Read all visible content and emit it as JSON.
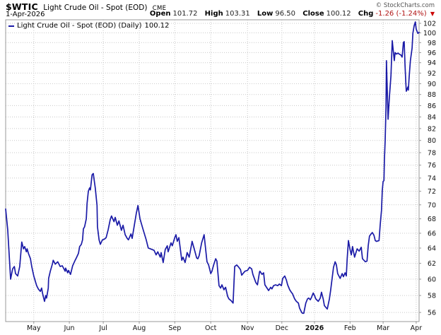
{
  "header": {
    "symbol": "$WTIC",
    "name": "Light Crude Oil - Spot (EOD)",
    "exchange": "CME",
    "date": "1-Apr-2026",
    "credit": "© StockCharts.com",
    "open_label": "Open",
    "open": "101.72",
    "high_label": "High",
    "high": "103.31",
    "low_label": "Low",
    "low": "96.50",
    "close_label": "Close",
    "close": "100.12",
    "chg_label": "Chg",
    "chg": "-1.26 (-1.24%)",
    "chg_direction": "down"
  },
  "legend": {
    "label": "Light Crude Oil - Spot (EOD) (Daily)",
    "value": "100.12"
  },
  "colors": {
    "line": "#1b1ba7",
    "grid": "#c9c9c9",
    "frame": "#999999",
    "down_red": "#cc0000"
  },
  "chart_data": {
    "type": "line",
    "title": "Light Crude Oil - Spot (EOD) (Daily)",
    "last_value": 100.12,
    "y_axis": {
      "scale": "log",
      "min": 54.95,
      "max": 102.75,
      "ticks": [
        102,
        100,
        98,
        96,
        94,
        92,
        90,
        88,
        86,
        84,
        82,
        80,
        78,
        76,
        74,
        72,
        70,
        68,
        66,
        64,
        62,
        60,
        58,
        56
      ]
    },
    "x_axis": {
      "labels": [
        {
          "t": 0.068,
          "label": "May"
        },
        {
          "t": 0.154,
          "label": "Jun"
        },
        {
          "t": 0.236,
          "label": "Jul"
        },
        {
          "t": 0.323,
          "label": "Aug"
        },
        {
          "t": 0.409,
          "label": "Sep"
        },
        {
          "t": 0.496,
          "label": "Oct"
        },
        {
          "t": 0.585,
          "label": "Nov"
        },
        {
          "t": 0.668,
          "label": "Dec"
        },
        {
          "t": 0.747,
          "label": "2026",
          "bold": true
        },
        {
          "t": 0.833,
          "label": "Feb"
        },
        {
          "t": 0.913,
          "label": "Mar"
        },
        {
          "t": 0.993,
          "label": "Apr"
        }
      ]
    },
    "points": [
      [
        0.0,
        69.4
      ],
      [
        0.005,
        66.5
      ],
      [
        0.012,
        60.0
      ],
      [
        0.017,
        61.3
      ],
      [
        0.021,
        61.6
      ],
      [
        0.024,
        60.7
      ],
      [
        0.029,
        60.4
      ],
      [
        0.034,
        61.6
      ],
      [
        0.039,
        64.8
      ],
      [
        0.043,
        63.9
      ],
      [
        0.046,
        64.2
      ],
      [
        0.05,
        63.5
      ],
      [
        0.052,
        63.9
      ],
      [
        0.055,
        63.3
      ],
      [
        0.06,
        62.6
      ],
      [
        0.063,
        61.6
      ],
      [
        0.068,
        60.4
      ],
      [
        0.072,
        59.7
      ],
      [
        0.075,
        59.2
      ],
      [
        0.079,
        58.8
      ],
      [
        0.084,
        58.5
      ],
      [
        0.087,
        58.9
      ],
      [
        0.089,
        58.3
      ],
      [
        0.092,
        57.7
      ],
      [
        0.094,
        57.3
      ],
      [
        0.097,
        58.0
      ],
      [
        0.099,
        57.7
      ],
      [
        0.103,
        58.9
      ],
      [
        0.104,
        60.1
      ],
      [
        0.108,
        61.0
      ],
      [
        0.113,
        61.9
      ],
      [
        0.115,
        62.4
      ],
      [
        0.12,
        61.9
      ],
      [
        0.126,
        62.2
      ],
      [
        0.132,
        61.6
      ],
      [
        0.137,
        61.7
      ],
      [
        0.144,
        61.0
      ],
      [
        0.145,
        61.4
      ],
      [
        0.15,
        60.8
      ],
      [
        0.152,
        61.1
      ],
      [
        0.157,
        60.6
      ],
      [
        0.162,
        61.7
      ],
      [
        0.168,
        62.4
      ],
      [
        0.171,
        62.7
      ],
      [
        0.176,
        63.3
      ],
      [
        0.179,
        64.2
      ],
      [
        0.183,
        64.5
      ],
      [
        0.186,
        65.1
      ],
      [
        0.188,
        66.6
      ],
      [
        0.191,
        66.9
      ],
      [
        0.195,
        68.0
      ],
      [
        0.197,
        70.2
      ],
      [
        0.2,
        72.0
      ],
      [
        0.203,
        72.5
      ],
      [
        0.205,
        72.2
      ],
      [
        0.209,
        74.5
      ],
      [
        0.212,
        74.7
      ],
      [
        0.217,
        72.4
      ],
      [
        0.221,
        69.9
      ],
      [
        0.222,
        66.9
      ],
      [
        0.226,
        65.1
      ],
      [
        0.229,
        64.5
      ],
      [
        0.234,
        65.1
      ],
      [
        0.239,
        65.2
      ],
      [
        0.243,
        65.4
      ],
      [
        0.248,
        66.5
      ],
      [
        0.253,
        67.9
      ],
      [
        0.256,
        68.4
      ],
      [
        0.262,
        67.6
      ],
      [
        0.265,
        68.2
      ],
      [
        0.27,
        67.1
      ],
      [
        0.274,
        67.7
      ],
      [
        0.28,
        66.4
      ],
      [
        0.284,
        67.1
      ],
      [
        0.289,
        65.8
      ],
      [
        0.294,
        65.3
      ],
      [
        0.297,
        65.1
      ],
      [
        0.303,
        65.9
      ],
      [
        0.306,
        65.3
      ],
      [
        0.311,
        67.0
      ],
      [
        0.316,
        68.8
      ],
      [
        0.32,
        69.9
      ],
      [
        0.325,
        68.0
      ],
      [
        0.332,
        66.6
      ],
      [
        0.34,
        65.1
      ],
      [
        0.345,
        64.0
      ],
      [
        0.35,
        63.9
      ],
      [
        0.359,
        63.7
      ],
      [
        0.364,
        63.1
      ],
      [
        0.368,
        63.5
      ],
      [
        0.374,
        62.8
      ],
      [
        0.376,
        63.4
      ],
      [
        0.381,
        62.1
      ],
      [
        0.386,
        63.8
      ],
      [
        0.391,
        64.3
      ],
      [
        0.393,
        63.5
      ],
      [
        0.4,
        64.7
      ],
      [
        0.403,
        64.3
      ],
      [
        0.409,
        65.4
      ],
      [
        0.412,
        65.8
      ],
      [
        0.415,
        64.9
      ],
      [
        0.419,
        65.4
      ],
      [
        0.426,
        62.4
      ],
      [
        0.429,
        62.8
      ],
      [
        0.434,
        62.1
      ],
      [
        0.439,
        63.4
      ],
      [
        0.444,
        62.8
      ],
      [
        0.45,
        64.6
      ],
      [
        0.451,
        64.9
      ],
      [
        0.456,
        63.9
      ],
      [
        0.462,
        62.7
      ],
      [
        0.465,
        62.6
      ],
      [
        0.468,
        63.0
      ],
      [
        0.474,
        64.7
      ],
      [
        0.479,
        65.6
      ],
      [
        0.48,
        65.8
      ],
      [
        0.486,
        62.7
      ],
      [
        0.487,
        62.2
      ],
      [
        0.491,
        61.8
      ],
      [
        0.496,
        60.7
      ],
      [
        0.499,
        61.0
      ],
      [
        0.503,
        61.8
      ],
      [
        0.508,
        62.6
      ],
      [
        0.511,
        62.3
      ],
      [
        0.516,
        59.2
      ],
      [
        0.52,
        58.9
      ],
      [
        0.523,
        59.3
      ],
      [
        0.528,
        58.7
      ],
      [
        0.532,
        59.0
      ],
      [
        0.537,
        57.9
      ],
      [
        0.54,
        57.6
      ],
      [
        0.545,
        57.4
      ],
      [
        0.55,
        57.1
      ],
      [
        0.554,
        61.6
      ],
      [
        0.559,
        61.8
      ],
      [
        0.564,
        61.5
      ],
      [
        0.568,
        61.2
      ],
      [
        0.571,
        60.5
      ],
      [
        0.574,
        60.7
      ],
      [
        0.579,
        61.0
      ],
      [
        0.585,
        61.1
      ],
      [
        0.59,
        61.5
      ],
      [
        0.595,
        61.3
      ],
      [
        0.598,
        60.6
      ],
      [
        0.605,
        59.6
      ],
      [
        0.609,
        59.3
      ],
      [
        0.614,
        60.9
      ],
      [
        0.615,
        61.0
      ],
      [
        0.62,
        60.6
      ],
      [
        0.624,
        60.8
      ],
      [
        0.627,
        59.3
      ],
      [
        0.631,
        59.0
      ],
      [
        0.636,
        58.6
      ],
      [
        0.641,
        59.0
      ],
      [
        0.644,
        58.8
      ],
      [
        0.648,
        59.2
      ],
      [
        0.653,
        59.3
      ],
      [
        0.658,
        59.2
      ],
      [
        0.662,
        59.4
      ],
      [
        0.667,
        59.2
      ],
      [
        0.67,
        60.1
      ],
      [
        0.675,
        60.4
      ],
      [
        0.679,
        59.9
      ],
      [
        0.682,
        59.3
      ],
      [
        0.687,
        58.7
      ],
      [
        0.691,
        58.4
      ],
      [
        0.694,
        58.2
      ],
      [
        0.699,
        57.6
      ],
      [
        0.703,
        57.3
      ],
      [
        0.708,
        57.1
      ],
      [
        0.711,
        56.5
      ],
      [
        0.716,
        56.0
      ],
      [
        0.718,
        55.9
      ],
      [
        0.721,
        55.9
      ],
      [
        0.726,
        57.1
      ],
      [
        0.73,
        57.6
      ],
      [
        0.733,
        57.7
      ],
      [
        0.737,
        57.5
      ],
      [
        0.74,
        57.8
      ],
      [
        0.744,
        58.3
      ],
      [
        0.747,
        58.0
      ],
      [
        0.75,
        57.6
      ],
      [
        0.756,
        57.3
      ],
      [
        0.761,
        57.7
      ],
      [
        0.764,
        58.4
      ],
      [
        0.768,
        57.6
      ],
      [
        0.771,
        56.8
      ],
      [
        0.776,
        56.5
      ],
      [
        0.778,
        56.4
      ],
      [
        0.783,
        57.6
      ],
      [
        0.786,
        58.6
      ],
      [
        0.793,
        61.5
      ],
      [
        0.797,
        62.2
      ],
      [
        0.8,
        61.8
      ],
      [
        0.803,
        60.7
      ],
      [
        0.809,
        60.1
      ],
      [
        0.814,
        60.7
      ],
      [
        0.817,
        60.3
      ],
      [
        0.821,
        60.8
      ],
      [
        0.824,
        60.4
      ],
      [
        0.826,
        62.5
      ],
      [
        0.829,
        65.0
      ],
      [
        0.833,
        63.8
      ],
      [
        0.836,
        63.1
      ],
      [
        0.839,
        64.2
      ],
      [
        0.844,
        62.8
      ],
      [
        0.85,
        63.9
      ],
      [
        0.855,
        63.6
      ],
      [
        0.86,
        64.1
      ],
      [
        0.863,
        62.6
      ],
      [
        0.87,
        62.2
      ],
      [
        0.874,
        62.3
      ],
      [
        0.877,
        64.3
      ],
      [
        0.88,
        65.6
      ],
      [
        0.884,
        65.9
      ],
      [
        0.887,
        66.1
      ],
      [
        0.891,
        65.7
      ],
      [
        0.894,
        65.0
      ],
      [
        0.897,
        64.9
      ],
      [
        0.903,
        65.0
      ],
      [
        0.906,
        67.2
      ],
      [
        0.909,
        69.2
      ],
      [
        0.911,
        72.1
      ],
      [
        0.913,
        73.5
      ],
      [
        0.915,
        73.6
      ],
      [
        0.916,
        76.8
      ],
      [
        0.918,
        80.0
      ],
      [
        0.92,
        85.7
      ],
      [
        0.921,
        94.4
      ],
      [
        0.925,
        83.6
      ],
      [
        0.928,
        87.4
      ],
      [
        0.932,
        91.5
      ],
      [
        0.935,
        98.4
      ],
      [
        0.94,
        94.4
      ],
      [
        0.942,
        96.0
      ],
      [
        0.945,
        95.7
      ],
      [
        0.949,
        95.9
      ],
      [
        0.952,
        95.7
      ],
      [
        0.956,
        95.5
      ],
      [
        0.959,
        95.1
      ],
      [
        0.962,
        98.0
      ],
      [
        0.964,
        98.2
      ],
      [
        0.966,
        93.5
      ],
      [
        0.968,
        90.0
      ],
      [
        0.969,
        88.6
      ],
      [
        0.973,
        89.4
      ],
      [
        0.974,
        88.8
      ],
      [
        0.976,
        91.4
      ],
      [
        0.979,
        94.4
      ],
      [
        0.983,
        96.9
      ],
      [
        0.985,
        99.9
      ],
      [
        0.988,
        101.5
      ],
      [
        0.991,
        102.3
      ],
      [
        0.993,
        100.8
      ],
      [
        0.997,
        99.9
      ],
      [
        1.0,
        100.1
      ]
    ]
  }
}
